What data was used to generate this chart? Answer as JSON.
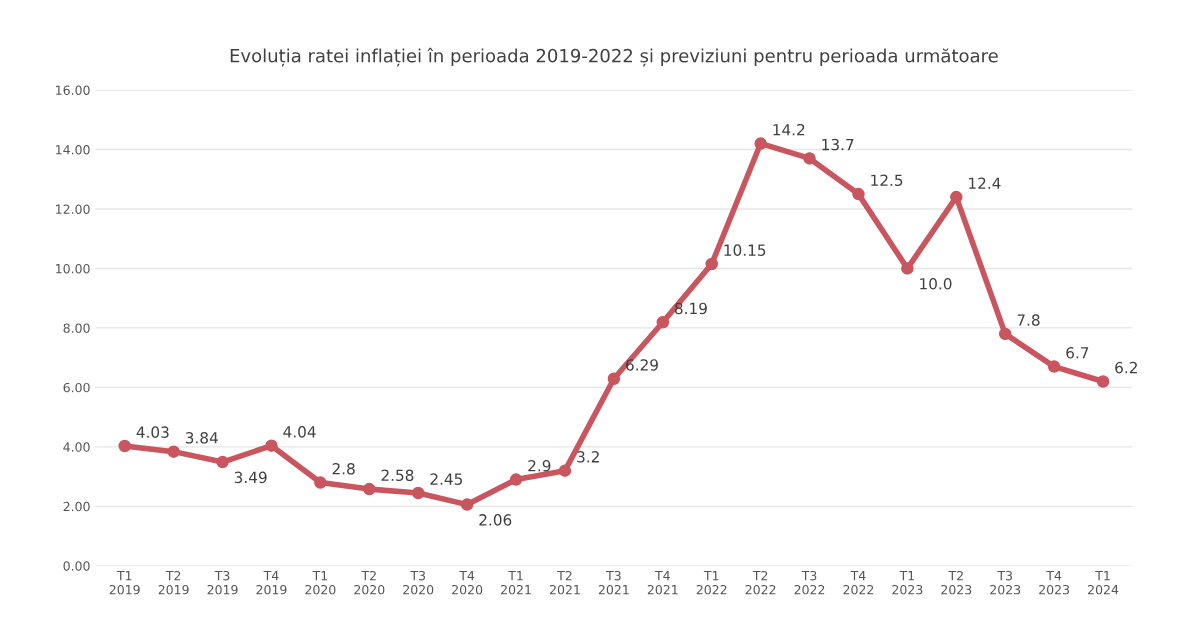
{
  "chart_data": {
    "type": "line",
    "title": "Evoluția ratei inflației în perioada 2019-2022 și previziuni pentru perioada următoare",
    "categories": [
      "T1\n2019",
      "T2\n2019",
      "T3\n2019",
      "T4\n2019",
      "T1\n2020",
      "T2\n2020",
      "T3\n2020",
      "T4\n2020",
      "T1\n2021",
      "T2\n2021",
      "T3\n2021",
      "T4\n2021",
      "T1\n2022",
      "T2\n2022",
      "T3\n2022",
      "T4\n2022",
      "T1\n2023",
      "T2\n2023",
      "T3\n2023",
      "T4\n2023",
      "T1\n2024"
    ],
    "series": [
      {
        "color": "#c9565e",
        "values": [
          4.03,
          3.84,
          3.49,
          4.04,
          2.8,
          2.58,
          2.45,
          2.06,
          2.9,
          3.2,
          6.29,
          8.19,
          10.15,
          14.2,
          13.7,
          12.5,
          10.0,
          12.4,
          7.8,
          6.7,
          6.2
        ],
        "value_labels": [
          "4.03",
          "3.84",
          "3.49",
          "4.04",
          "2.8",
          "2.58",
          "2.45",
          "2.06",
          "2.9",
          "3.2",
          "6.29",
          "8.19",
          "10.15",
          "14.2",
          "13.7",
          "12.5",
          "10.0",
          "12.4",
          "7.8",
          "6.7",
          "6.2"
        ]
      }
    ],
    "ylim": [
      0,
      16
    ],
    "yticks": [
      {
        "value": 0,
        "label": "0.00"
      },
      {
        "value": 2,
        "label": "2.00"
      },
      {
        "value": 4,
        "label": "4.00"
      },
      {
        "value": 6,
        "label": "6.00"
      },
      {
        "value": 8,
        "label": "8.00"
      },
      {
        "value": 10,
        "label": "10.00"
      },
      {
        "value": 12,
        "label": "12.00"
      },
      {
        "value": 14,
        "label": "14.00"
      },
      {
        "value": 16,
        "label": "16.00"
      }
    ],
    "grid": "y",
    "marker": "circle",
    "line_style": "solid"
  }
}
